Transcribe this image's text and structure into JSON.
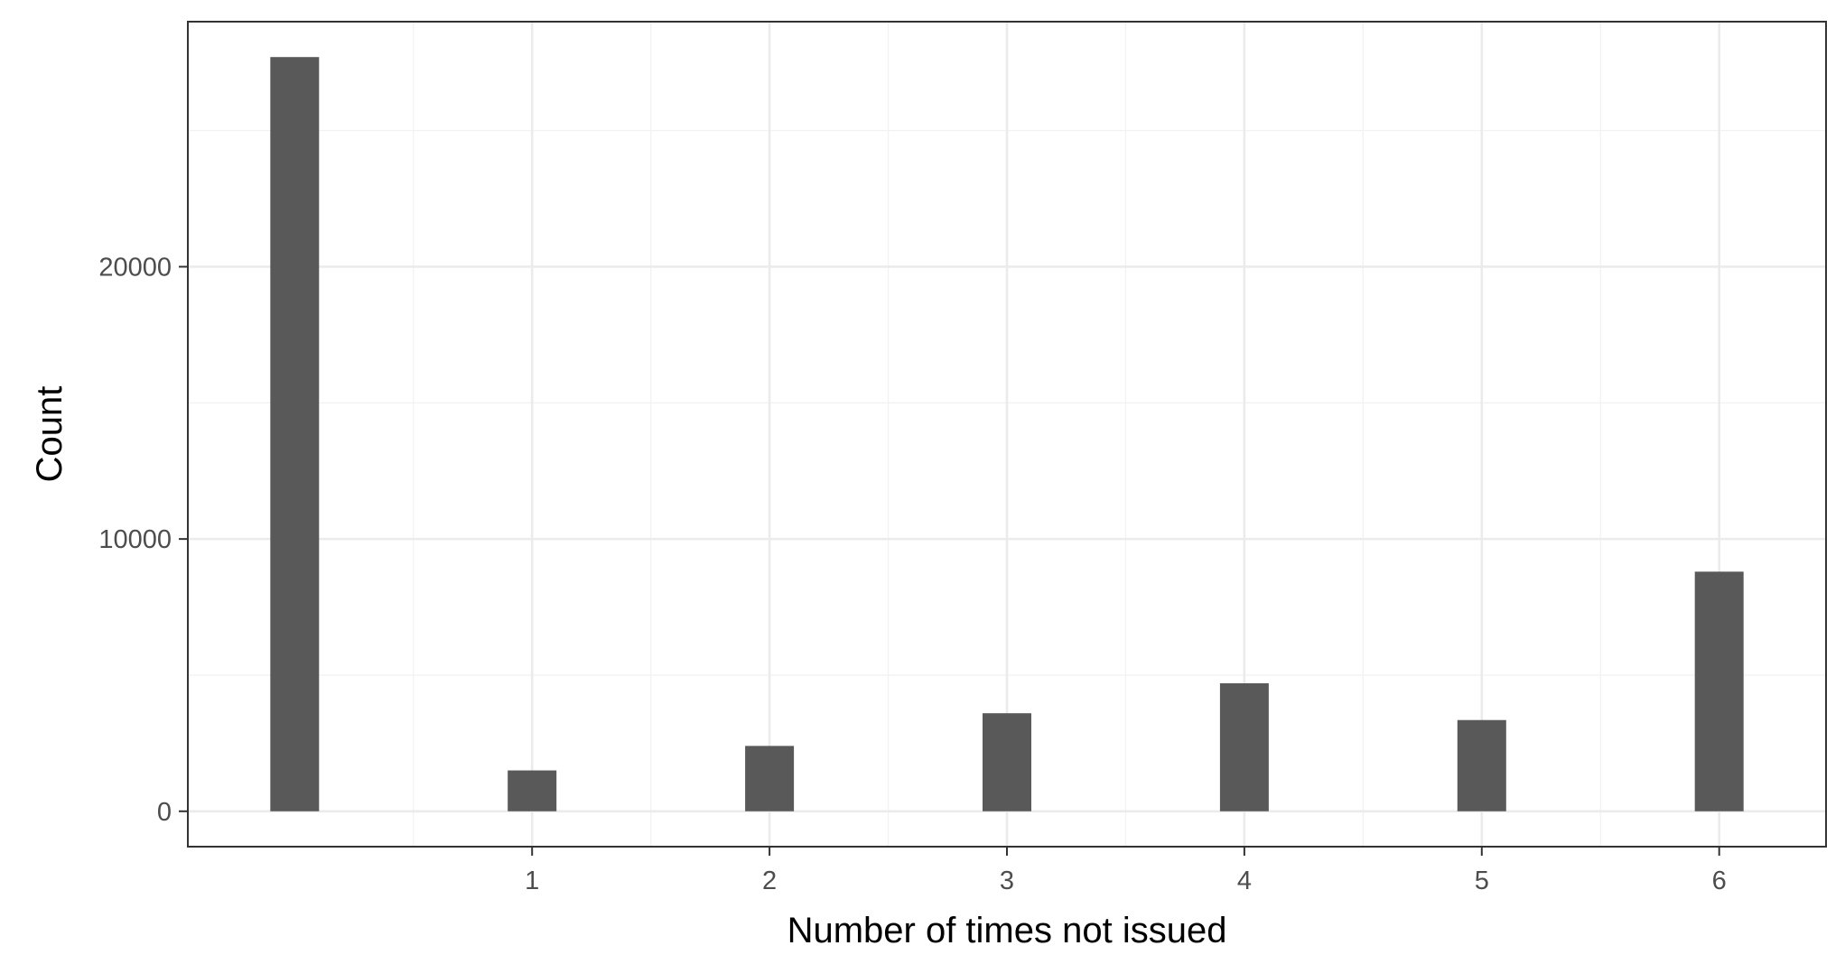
{
  "chart_data": {
    "type": "bar",
    "title": "",
    "xlabel": "Number of times not issued",
    "ylabel": "Count",
    "x": [
      0,
      1,
      2,
      3,
      4,
      5,
      6
    ],
    "values": [
      27700,
      1500,
      2400,
      3600,
      4700,
      3350,
      8800
    ],
    "xlim": [
      -0.45,
      6.45
    ],
    "ylim": [
      -1300,
      29000
    ],
    "x_ticks": [
      1,
      2,
      3,
      4,
      5,
      6
    ],
    "x_tick_labels": [
      "1",
      "2",
      "3",
      "4",
      "5",
      "6"
    ],
    "y_ticks": [
      0,
      10000,
      20000
    ],
    "y_tick_labels": [
      "0",
      "10000",
      "20000"
    ],
    "grid": true,
    "legend": "none",
    "colors": {
      "bar": "#595959",
      "grid_major": "#ebebeb",
      "grid_minor": "#f2f2f2",
      "panel_border": "#333333",
      "tick_label": "#4d4d4d",
      "axis_title": "#000000"
    }
  }
}
